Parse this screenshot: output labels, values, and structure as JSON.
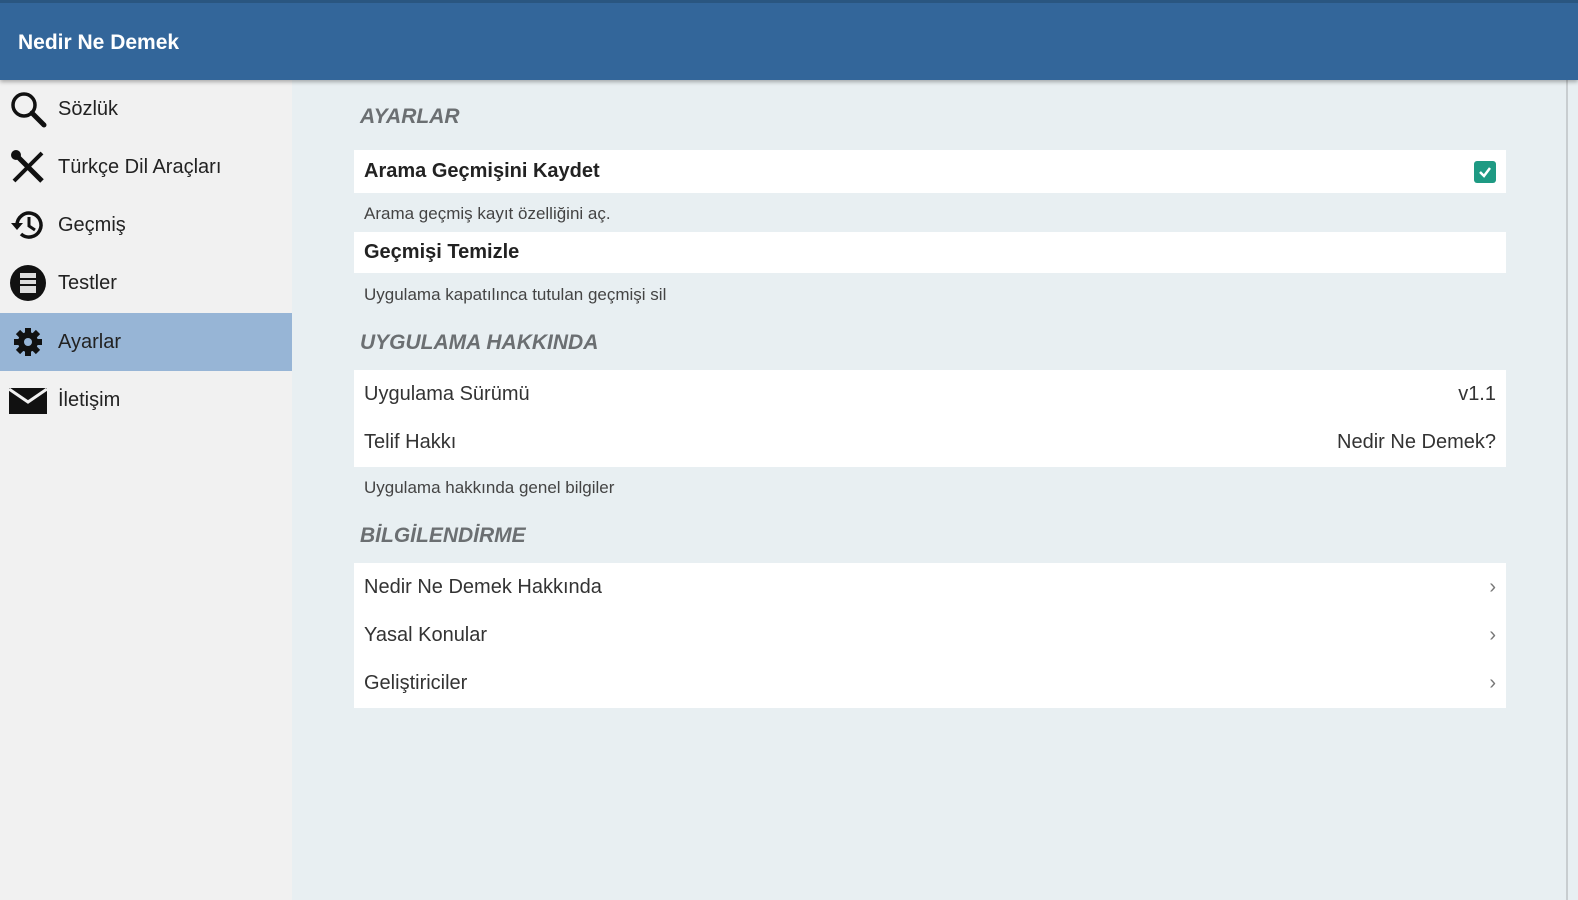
{
  "app": {
    "title": "Nedir Ne Demek"
  },
  "sidebar": {
    "items": [
      {
        "label": "Sözlük",
        "icon": "search-icon"
      },
      {
        "label": "Türkçe Dil Araçları",
        "icon": "tools-icon"
      },
      {
        "label": "Geçmiş",
        "icon": "history-icon"
      },
      {
        "label": "Testler",
        "icon": "tests-icon"
      },
      {
        "label": "Ayarlar",
        "icon": "gear-icon",
        "active": true
      },
      {
        "label": "İletişim",
        "icon": "mail-icon"
      }
    ]
  },
  "settings": {
    "section_title": "AYARLAR",
    "save_history": {
      "label": "Arama Geçmişini Kaydet",
      "checked": true,
      "description": "Arama geçmiş kayıt özelliğini aç."
    },
    "clear_history": {
      "label": "Geçmişi Temizle",
      "description": "Uygulama kapatılınca tutulan geçmişi sil"
    }
  },
  "about": {
    "section_title": "UYGULAMA HAKKINDA",
    "version": {
      "label": "Uygulama Sürümü",
      "value": "v1.1"
    },
    "copyright": {
      "label": "Telif Hakkı",
      "value": "Nedir Ne Demek?"
    },
    "description": "Uygulama hakkında genel bilgiler"
  },
  "info": {
    "section_title": "BİLGİLENDİRME",
    "items": [
      {
        "label": "Nedir Ne Demek Hakkında"
      },
      {
        "label": "Yasal Konular"
      },
      {
        "label": "Geliştiriciler"
      }
    ]
  },
  "colors": {
    "header": "#33669a",
    "active_nav": "#97b5d6",
    "checkbox": "#1e9a83"
  }
}
